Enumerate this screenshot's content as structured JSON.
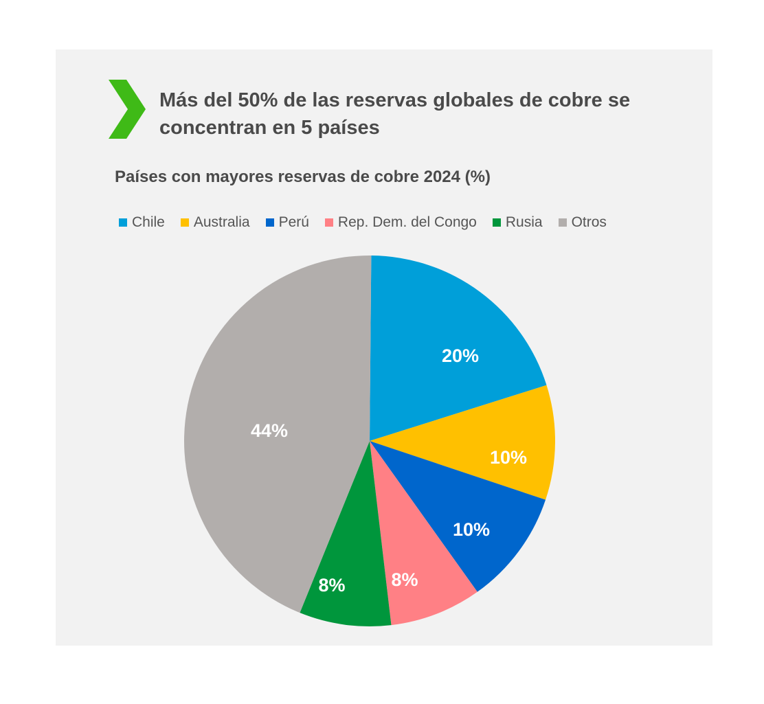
{
  "headline": "Más del 50% de las reservas globales de cobre se concentran en 5 países",
  "accent_color": "#3fba17",
  "chart_data": {
    "type": "pie",
    "title": "Países con mayores reservas de cobre 2024 (%)",
    "legend_position": "top",
    "categories": [
      "Chile",
      "Australia",
      "Perú",
      "Rep. Dem. del Congo",
      "Rusia",
      "Otros"
    ],
    "values": [
      20,
      10,
      10,
      8,
      8,
      44
    ],
    "labels": [
      "20%",
      "10%",
      "10%",
      "8%",
      "8%",
      "44%"
    ],
    "colors": [
      "#009fd9",
      "#ffc000",
      "#0066cc",
      "#ff8085",
      "#00963c",
      "#b2aeac"
    ]
  }
}
